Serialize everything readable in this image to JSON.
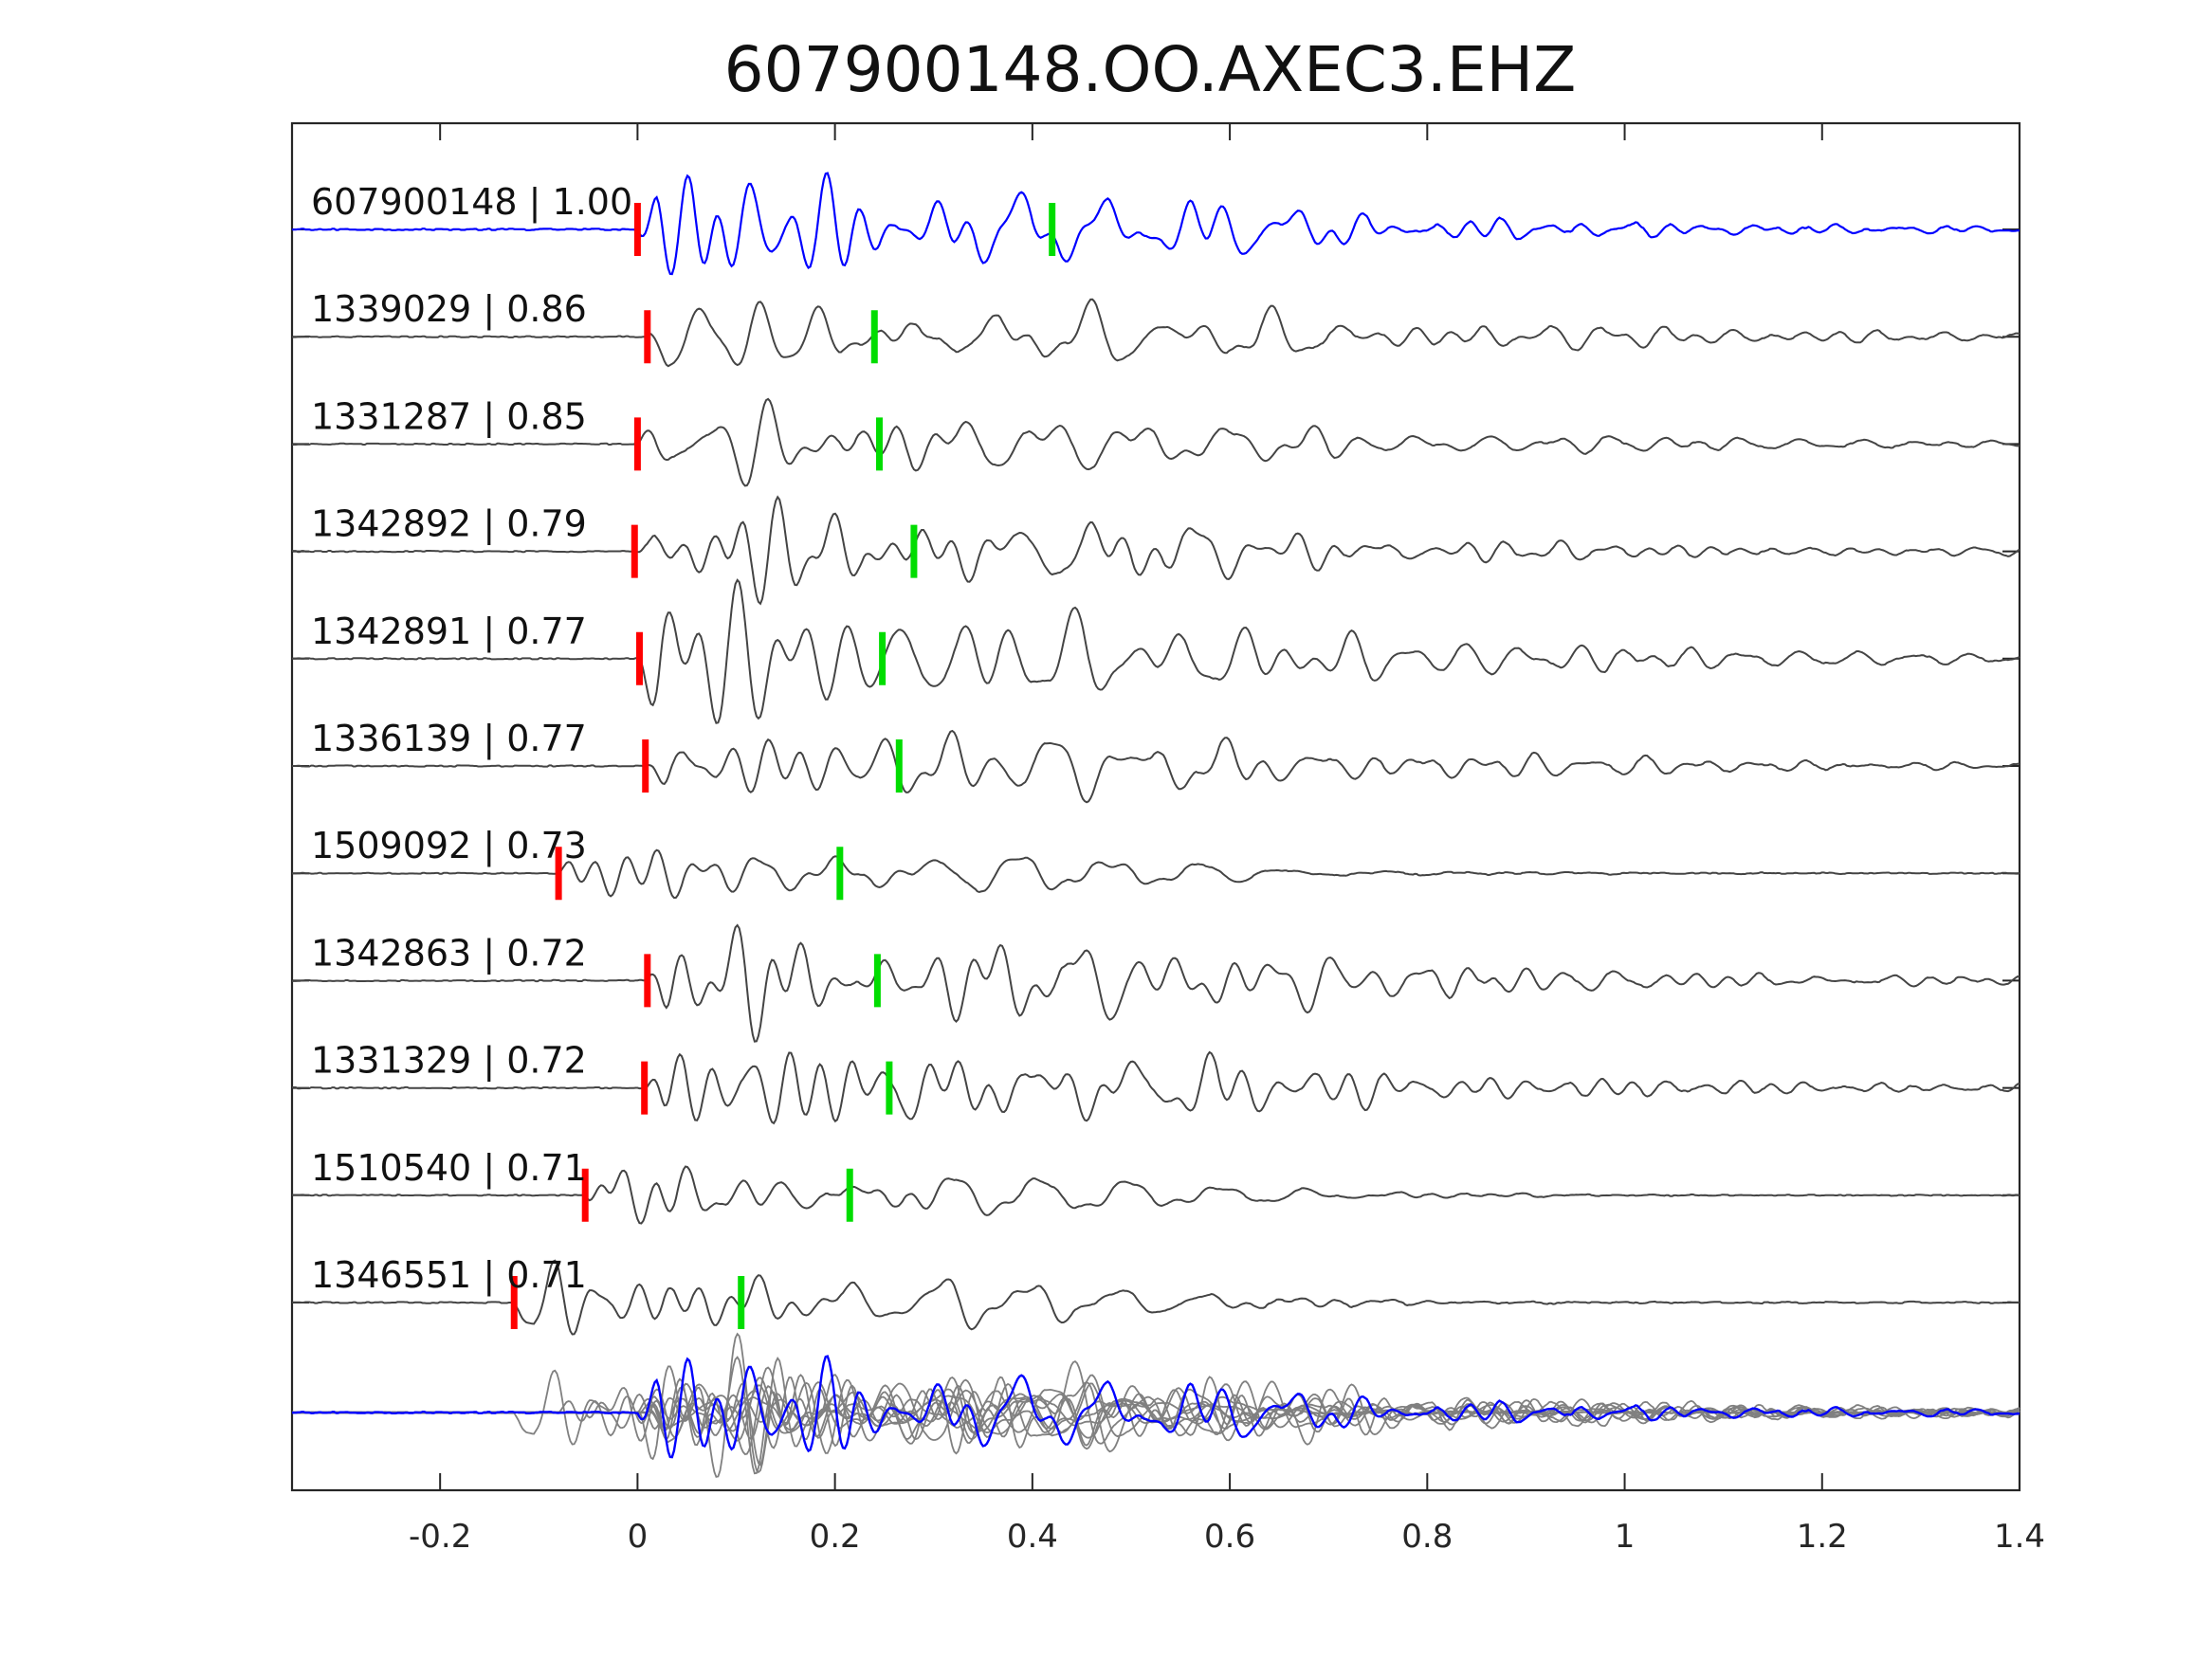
{
  "chart_data": {
    "type": "line",
    "title": "607900148.OO.AXEC3.EHZ",
    "xlabel": "",
    "ylabel": "",
    "xlim": [
      -0.35,
      1.4
    ],
    "x_ticks": [
      {
        "value": -0.2,
        "label": "-0.2"
      },
      {
        "value": 0,
        "label": "0"
      },
      {
        "value": 0.2,
        "label": "0.2"
      },
      {
        "value": 0.4,
        "label": "0.4"
      },
      {
        "value": 0.6,
        "label": "0.6"
      },
      {
        "value": 0.8,
        "label": "0.8"
      },
      {
        "value": 1,
        "label": "1"
      },
      {
        "value": 1.2,
        "label": "1.2"
      },
      {
        "value": 1.4,
        "label": "1.4"
      }
    ],
    "grid": false,
    "colors": {
      "master": "#0000ff",
      "trace": "#444444",
      "stack_trace": "#808080",
      "p_pick": "#ff0000",
      "s_pick": "#00dd00",
      "axis": "#262626"
    },
    "series": [
      {
        "name": "607900148 | 1.00",
        "label": "607900148 | 1.00",
        "p_pick": 0.0,
        "s_pick": 0.42,
        "amplitude": 1.0
      },
      {
        "name": "1339029 | 0.86",
        "label": "1339029 | 0.86",
        "p_pick": 0.01,
        "s_pick": 0.24,
        "amplitude": 0.85
      },
      {
        "name": "1331287 | 0.85",
        "label": "1331287 | 0.85",
        "p_pick": 0.0,
        "s_pick": 0.245,
        "amplitude": 0.82
      },
      {
        "name": "1342892 | 0.79",
        "label": "1342892 | 0.79",
        "p_pick": -0.003,
        "s_pick": 0.28,
        "amplitude": 0.85
      },
      {
        "name": "1342891 | 0.77",
        "label": "1342891 | 0.77",
        "p_pick": 0.002,
        "s_pick": 0.248,
        "amplitude": 0.85
      },
      {
        "name": "1336139 | 0.77",
        "label": "1336139 | 0.77",
        "p_pick": 0.008,
        "s_pick": 0.265,
        "amplitude": 0.85
      },
      {
        "name": "1509092 | 0.73",
        "label": "1509092 | 0.73",
        "p_pick": -0.08,
        "s_pick": 0.205,
        "amplitude": 0.7
      },
      {
        "name": "1342863 | 0.72",
        "label": "1342863 | 0.72",
        "p_pick": 0.01,
        "s_pick": 0.243,
        "amplitude": 0.85
      },
      {
        "name": "1331329 | 0.72",
        "label": "1331329 | 0.72",
        "p_pick": 0.007,
        "s_pick": 0.255,
        "amplitude": 0.85
      },
      {
        "name": "1510540 | 0.71",
        "label": "1510540 | 0.71",
        "p_pick": -0.053,
        "s_pick": 0.215,
        "amplitude": 0.7
      },
      {
        "name": "1346551 | 0.71",
        "label": "1346551 | 0.71",
        "p_pick": -0.125,
        "s_pick": 0.105,
        "amplitude": 0.85
      }
    ],
    "stack": {
      "description_visible": false,
      "master_color": "#0000ff",
      "trace_color": "#808080"
    }
  }
}
